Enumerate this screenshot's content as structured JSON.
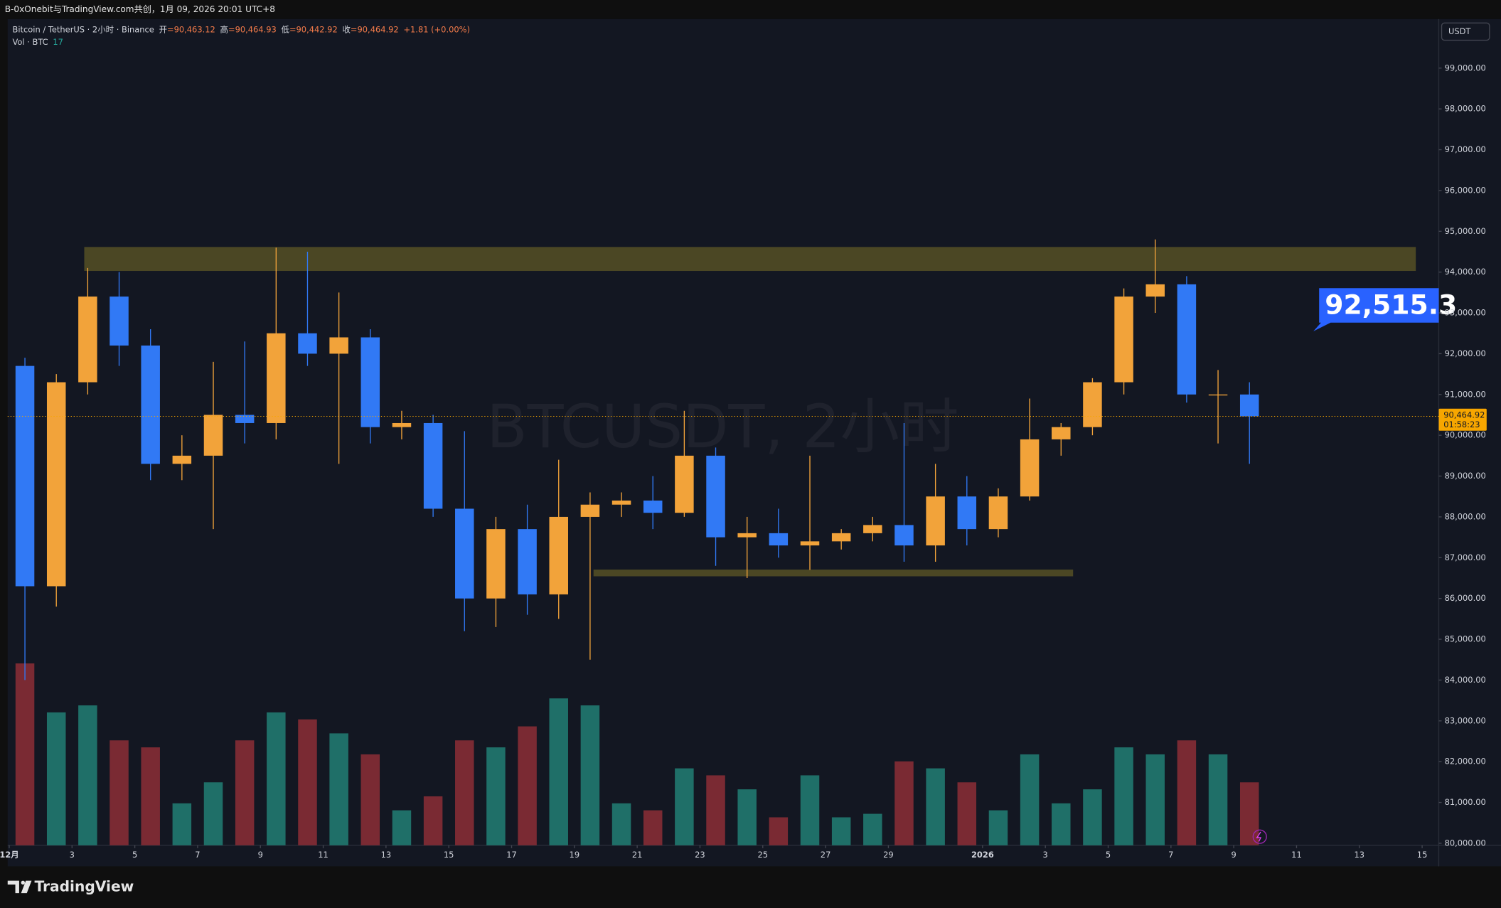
{
  "header": {
    "source": "B-0xOnebit与TradingView.com共创，1月 09, 2026 20:01 UTC+8",
    "symbol": "Bitcoin / TetherUS · 2小时 · Binance",
    "ohlc": [
      {
        "label": "开",
        "value": "=90,463.12"
      },
      {
        "label": "高",
        "value": "=90,464.93"
      },
      {
        "label": "低",
        "value": "=90,442.92"
      },
      {
        "label": "收",
        "value": "=90,464.92"
      }
    ],
    "change": "+1.81 (+0.00%)",
    "volume_label": "Vol · BTC",
    "volume_value": "17"
  },
  "currency": "USDT",
  "watermark": "BTCUSDT, 2小时",
  "callout": "92,515.3",
  "brand": "TradingView",
  "chart_data": {
    "type": "candlestick",
    "x": [
      0.5,
      1.5,
      2.5,
      3.5,
      4.5,
      5.5,
      6.5,
      7.5,
      8.5,
      9.5,
      10.5,
      11.5,
      12.5,
      13.5,
      14.5,
      15.5,
      16.5,
      17.5,
      18.5,
      19.5,
      20.5,
      21.5,
      22.5,
      23.5,
      24.5,
      25.5,
      26.5,
      27.5,
      28.5,
      29.5,
      30.5,
      31.5,
      32.5,
      33.5,
      34.5,
      35.5,
      36.5,
      37.5,
      38.5,
      39.5
    ],
    "open": [
      91700,
      86300,
      91300,
      93400,
      92200,
      89300,
      89500,
      90500,
      90300,
      92500,
      92000,
      92400,
      90200,
      90300,
      88200,
      86000,
      87700,
      86100,
      88000,
      88300,
      88400,
      88100,
      89500,
      87500,
      87600,
      87300,
      87400,
      87600,
      87800,
      87300,
      88500,
      87700,
      88500,
      89900,
      90200,
      91300,
      93400,
      93700,
      91000,
      91000
    ],
    "high": [
      91900,
      91500,
      94100,
      94000,
      92600,
      90000,
      91800,
      92300,
      94600,
      94500,
      93500,
      92600,
      90600,
      90500,
      90100,
      88000,
      88300,
      89400,
      88600,
      88600,
      89000,
      90600,
      89700,
      88000,
      88200,
      89500,
      87700,
      88000,
      90300,
      89300,
      89000,
      88700,
      90900,
      90300,
      91400,
      93600,
      94800,
      93900,
      91600,
      91300
    ],
    "low": [
      84000,
      85800,
      91000,
      91700,
      88900,
      88900,
      87700,
      89800,
      89900,
      91700,
      89300,
      89800,
      89900,
      88000,
      85200,
      85300,
      85600,
      85500,
      84500,
      88000,
      87700,
      88000,
      86800,
      86500,
      87000,
      86700,
      87200,
      87400,
      86900,
      86900,
      87300,
      87500,
      88400,
      89500,
      90000,
      91000,
      93000,
      90800,
      89800,
      89300
    ],
    "close": [
      86300,
      91300,
      93400,
      92200,
      89300,
      89500,
      90500,
      90300,
      92500,
      92000,
      92400,
      90200,
      90300,
      88200,
      86000,
      87700,
      86100,
      88000,
      88300,
      88400,
      88100,
      89500,
      87500,
      87600,
      87300,
      87400,
      87600,
      87800,
      87300,
      88500,
      87700,
      88500,
      89900,
      90200,
      91300,
      93400,
      93700,
      91000,
      91000,
      90464.92
    ],
    "volume": [
      52000,
      38000,
      40000,
      30000,
      28000,
      12000,
      18000,
      30000,
      38000,
      36000,
      32000,
      26000,
      10000,
      14000,
      30000,
      28000,
      34000,
      42000,
      40000,
      12000,
      10000,
      22000,
      20000,
      16000,
      8000,
      20000,
      8000,
      9000,
      24000,
      22000,
      18000,
      10000,
      26000,
      12000,
      16000,
      28000,
      26000,
      30000,
      26000,
      18000
    ],
    "xlim": [
      -0.05,
      45.53
    ],
    "ylim": [
      79950,
      100200
    ],
    "xticks": [
      {
        "value": 0,
        "label": "12月"
      },
      {
        "value": 2,
        "label": "3"
      },
      {
        "value": 4,
        "label": "5"
      },
      {
        "value": 6,
        "label": "7"
      },
      {
        "value": 8,
        "label": "9"
      },
      {
        "value": 10,
        "label": "11"
      },
      {
        "value": 12,
        "label": "13"
      },
      {
        "value": 14,
        "label": "15"
      },
      {
        "value": 16,
        "label": "17"
      },
      {
        "value": 18,
        "label": "19"
      },
      {
        "value": 20,
        "label": "21"
      },
      {
        "value": 22,
        "label": "23"
      },
      {
        "value": 24,
        "label": "25"
      },
      {
        "value": 26,
        "label": "27"
      },
      {
        "value": 28,
        "label": "29"
      },
      {
        "value": 31,
        "label": "2026"
      },
      {
        "value": 33,
        "label": "3"
      },
      {
        "value": 35,
        "label": "5"
      },
      {
        "value": 37,
        "label": "7"
      },
      {
        "value": 39,
        "label": "9"
      },
      {
        "value": 41,
        "label": "11"
      },
      {
        "value": 43,
        "label": "13"
      },
      {
        "value": 45,
        "label": "15"
      }
    ],
    "yticks": [
      {
        "value": 80000,
        "label": "80,000.00"
      },
      {
        "value": 81000,
        "label": "81,000.00"
      },
      {
        "value": 82000,
        "label": "82,000.00"
      },
      {
        "value": 83000,
        "label": "83,000.00"
      },
      {
        "value": 84000,
        "label": "84,000.00"
      },
      {
        "value": 85000,
        "label": "85,000.00"
      },
      {
        "value": 86000,
        "label": "86,000.00"
      },
      {
        "value": 87000,
        "label": "87,000.00"
      },
      {
        "value": 88000,
        "label": "88,000.00"
      },
      {
        "value": 89000,
        "label": "89,000.00"
      },
      {
        "value": 90000,
        "label": "90,000.00"
      },
      {
        "value": 91000,
        "label": "91,000.00"
      },
      {
        "value": 92000,
        "label": "92,000.00"
      },
      {
        "value": 93000,
        "label": "93,000.00"
      },
      {
        "value": 94000,
        "label": "94,000.00"
      },
      {
        "value": 95000,
        "label": "95,000.00"
      },
      {
        "value": 96000,
        "label": "96,000.00"
      },
      {
        "value": 97000,
        "label": "97,000.00"
      },
      {
        "value": 98000,
        "label": "98,000.00"
      },
      {
        "value": 99000,
        "label": "99,000.00"
      }
    ],
    "last_price": {
      "value": 90464.92,
      "label": "90,464.92"
    },
    "countdown": "01:58:23",
    "up_color": "#f2a33a",
    "down_color": "#3179f5",
    "volume_up_color": "#1f6f68",
    "volume_down_color": "#7a2a33",
    "last_price_color": "#f7a600"
  }
}
